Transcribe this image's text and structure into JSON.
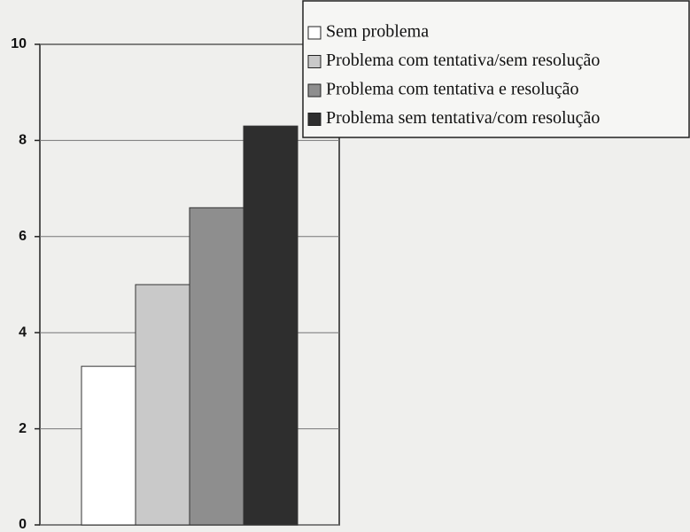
{
  "chart_data": {
    "type": "bar",
    "categories": [
      null
    ],
    "series": [
      {
        "name": "Sem problema",
        "color": "#ffffff",
        "values": [
          3.3
        ]
      },
      {
        "name": "Problema com tentativa/sem resolução",
        "color": "#c9c9c9",
        "values": [
          5.0
        ]
      },
      {
        "name": "Problema com tentativa e resolução",
        "color": "#8e8e8e",
        "values": [
          6.6
        ]
      },
      {
        "name": "Problema sem tentativa/com resolução",
        "color": "#2e2e2e",
        "values": [
          8.3
        ]
      }
    ],
    "ylim": [
      0,
      10
    ],
    "yticks": [
      0,
      2,
      4,
      6,
      8,
      10
    ],
    "grid": true,
    "legend": "upper right"
  }
}
